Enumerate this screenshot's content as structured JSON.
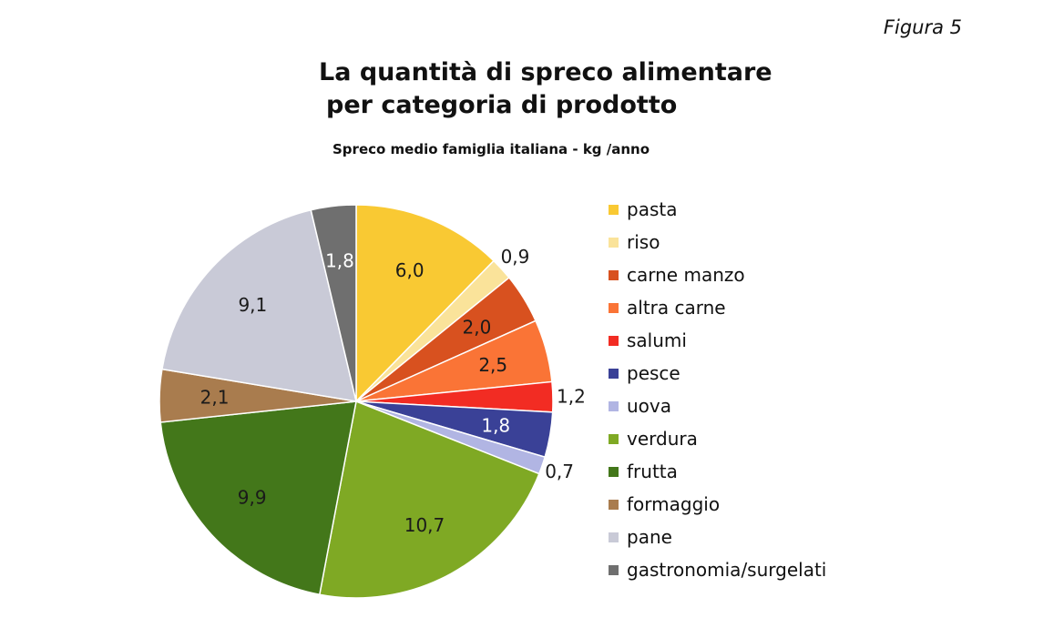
{
  "figure_label": "Figura 5",
  "chart_data": {
    "type": "pie",
    "title_line1": "La quantità di spreco alimentare",
    "title_line2": "per categoria di prodotto",
    "subtitle": "Spreco medio famiglia italiana - kg /anno",
    "legend_position": "right",
    "slices": [
      {
        "label": "pasta",
        "value": 6.0,
        "display": "6,0",
        "color": "#f9c933",
        "label_inside": true
      },
      {
        "label": "riso",
        "value": 0.9,
        "display": "0,9",
        "color": "#fae39a",
        "label_inside": false
      },
      {
        "label": "carne manzo",
        "value": 2.0,
        "display": "2,0",
        "color": "#d8511f",
        "label_inside": true
      },
      {
        "label": "altra carne",
        "value": 2.5,
        "display": "2,5",
        "color": "#fa7436",
        "label_inside": true
      },
      {
        "label": "salumi",
        "value": 1.2,
        "display": "1,2",
        "color": "#f22c23",
        "label_inside": false
      },
      {
        "label": "pesce",
        "value": 1.8,
        "display": "1,8",
        "color": "#3a4197",
        "label_inside": true
      },
      {
        "label": "uova",
        "value": 0.7,
        "display": "0,7",
        "color": "#b1b5e3",
        "label_inside": false
      },
      {
        "label": "verdura",
        "value": 10.7,
        "display": "10,7",
        "color": "#7fa924",
        "label_inside": true
      },
      {
        "label": "frutta",
        "value": 9.9,
        "display": "9,9",
        "color": "#43771a",
        "label_inside": true
      },
      {
        "label": "formaggio",
        "value": 2.1,
        "display": "2,1",
        "color": "#a97c4e",
        "label_inside": true
      },
      {
        "label": "pane",
        "value": 9.1,
        "display": "9,1",
        "color": "#c9cad7",
        "label_inside": true
      },
      {
        "label": "gastronomia/surgelati",
        "value": 1.8,
        "display": "1,8",
        "color": "#6f6f6f",
        "label_inside": true
      }
    ]
  }
}
